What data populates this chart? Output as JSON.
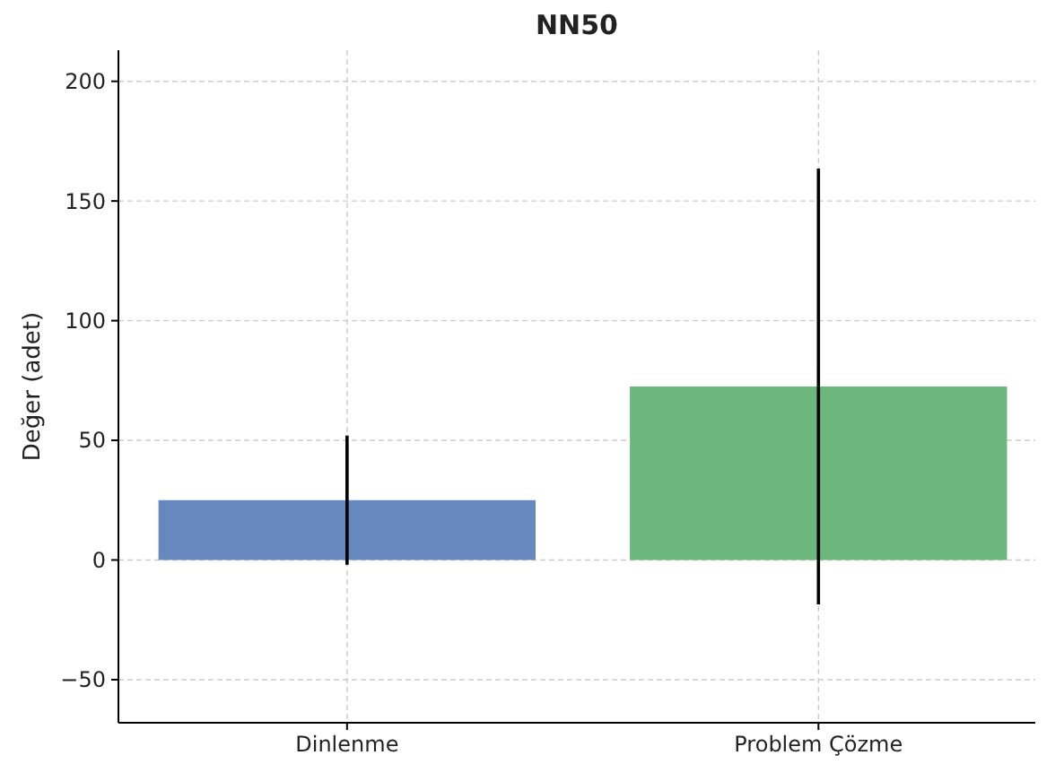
{
  "chart_data": {
    "type": "bar",
    "title": "NN50",
    "ylabel": "Değer (adet)",
    "categories": [
      "Dinlenme",
      "Problem Çözme"
    ],
    "values": [
      25,
      72.5
    ],
    "colors": [
      "#6788bf",
      "#6cb77b"
    ],
    "errors": [
      27,
      91
    ],
    "ylim": [
      -68,
      213
    ],
    "yticks": [
      {
        "value": -50,
        "label": "−50"
      },
      0,
      50,
      100,
      150,
      200
    ],
    "grid": true
  }
}
